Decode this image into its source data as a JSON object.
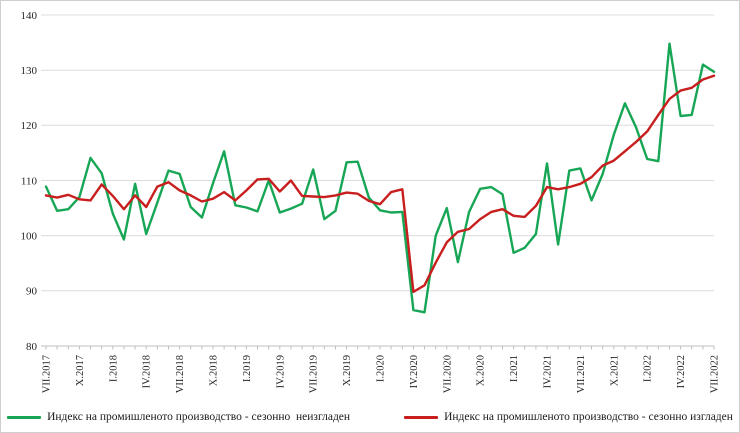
{
  "chart_data": {
    "type": "line",
    "title": "",
    "x": [
      "VII.2017",
      "VIII.2017",
      "IX.2017",
      "X.2017",
      "XI.2017",
      "XII.2017",
      "I.2018",
      "II.2018",
      "III.2018",
      "IV.2018",
      "V.2018",
      "VI.2018",
      "VII.2018",
      "VIII.2018",
      "IX.2018",
      "X.2018",
      "XI.2018",
      "XII.2018",
      "I.2019",
      "II.2019",
      "III.2019",
      "IV.2019",
      "V.2019",
      "VI.2019",
      "VII.2019",
      "VIII.2019",
      "IX.2019",
      "X.2019",
      "XI.2019",
      "XII.2019",
      "I.2020",
      "II.2020",
      "III.2020",
      "IV.2020",
      "V.2020",
      "VI.2020",
      "VII.2020",
      "VIII.2020",
      "IX.2020",
      "X.2020",
      "XI.2020",
      "XII.2020",
      "I.2021",
      "II.2021",
      "III.2021",
      "IV.2021",
      "V.2021",
      "VI.2021",
      "VII.2021",
      "VIII.2021",
      "IX.2021",
      "X.2021",
      "XI.2021",
      "XII.2021",
      "I.2022",
      "II.2022",
      "III.2022",
      "IV.2022",
      "V.2022",
      "VI.2022",
      "VII.2022"
    ],
    "x_tick_every": 3,
    "ylim": [
      80,
      140
    ],
    "yticks": [
      80,
      90,
      100,
      110,
      120,
      130,
      140
    ],
    "grid": "horizontal",
    "legend_position": "bottom",
    "series": [
      {
        "name": "Индекс на промишленото производство - сезонно  неизгладен",
        "color": "#17A655",
        "values": [
          108.9,
          104.5,
          104.8,
          107.0,
          114.1,
          111.3,
          104.0,
          99.3,
          109.4,
          100.3,
          106.0,
          111.8,
          111.2,
          105.2,
          103.3,
          109.5,
          115.3,
          105.5,
          105.1,
          104.4,
          110.0,
          104.2,
          104.9,
          105.8,
          112.0,
          103.0,
          104.5,
          113.3,
          113.4,
          106.9,
          104.6,
          104.2,
          104.3,
          86.5,
          86.1,
          100.0,
          105.0,
          95.2,
          104.3,
          108.5,
          108.8,
          107.5,
          96.9,
          97.8,
          100.3,
          113.1,
          98.4,
          111.8,
          112.2,
          106.4,
          111.2,
          118.3,
          124.0,
          119.6,
          113.9,
          113.5,
          134.8,
          121.7,
          121.9,
          131.0,
          129.7
        ]
      },
      {
        "name": "Индекс на промишленото производство - сезонно изгладен",
        "color": "#C81E1E",
        "values": [
          107.3,
          106.9,
          107.4,
          106.6,
          106.4,
          109.3,
          107.2,
          104.8,
          107.3,
          105.2,
          108.9,
          109.7,
          108.2,
          107.3,
          106.2,
          106.7,
          107.9,
          106.4,
          108.2,
          110.2,
          110.3,
          108.0,
          110.0,
          107.2,
          107.1,
          107.0,
          107.3,
          107.8,
          107.6,
          106.3,
          105.7,
          107.9,
          108.4,
          89.8,
          91.0,
          95.1,
          98.8,
          100.7,
          101.2,
          103.0,
          104.3,
          104.8,
          103.6,
          103.4,
          105.4,
          108.8,
          108.4,
          108.8,
          109.4,
          110.6,
          112.7,
          113.6,
          115.3,
          117.0,
          118.9,
          121.9,
          124.8,
          126.3,
          126.8,
          128.3,
          129.0
        ]
      }
    ],
    "colors": {
      "gridline": "#dcdcdc",
      "axis": "#bfbfbf"
    }
  }
}
